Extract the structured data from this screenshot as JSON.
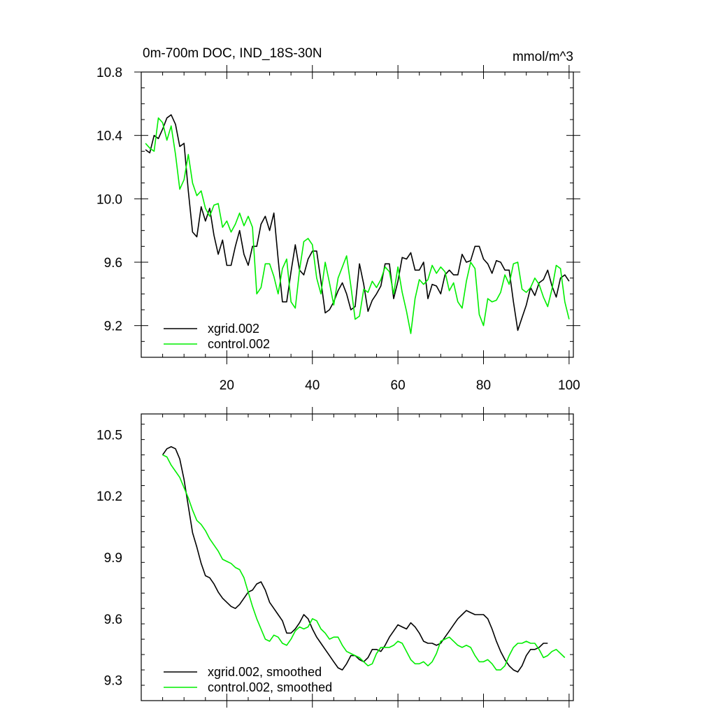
{
  "figure": {
    "title": "0m-700m DOC, IND_18S-30N",
    "units": "mmol/m^3"
  },
  "colors": {
    "series1": "#000000",
    "series2": "#00ee00",
    "axis": "#000000"
  },
  "chart_data": [
    {
      "type": "line",
      "title": "0m-700m DOC, IND_18S-30N",
      "units_label": "mmol/m^3",
      "xlabel": "",
      "ylabel": "",
      "xlim": [
        0,
        101
      ],
      "ylim": [
        9.0,
        10.8
      ],
      "xticks": [
        20,
        40,
        60,
        80,
        100
      ],
      "xtick_labels": [
        "20",
        "40",
        "60",
        "80",
        "100"
      ],
      "yticks": [
        9.2,
        9.6,
        10.0,
        10.4,
        10.8
      ],
      "ytick_labels": [
        "9.2",
        "9.6",
        "10.0",
        "10.4",
        "10.8"
      ],
      "legend_position": "bottom-left",
      "x_start": 1,
      "x_step": 1,
      "series": [
        {
          "name": "xgrid.002",
          "color": "#000000",
          "values": [
            10.31,
            10.29,
            10.4,
            10.38,
            10.44,
            10.51,
            10.53,
            10.47,
            10.33,
            10.35,
            10.05,
            9.79,
            9.76,
            9.95,
            9.86,
            9.94,
            9.77,
            9.65,
            9.74,
            9.58,
            9.58,
            9.7,
            9.8,
            9.65,
            9.58,
            9.7,
            9.7,
            9.84,
            9.89,
            9.8,
            9.91,
            9.62,
            9.35,
            9.35,
            9.54,
            9.71,
            9.55,
            9.52,
            9.62,
            9.67,
            9.67,
            9.48,
            9.28,
            9.3,
            9.35,
            9.42,
            9.47,
            9.4,
            9.3,
            9.32,
            9.59,
            9.46,
            9.29,
            9.36,
            9.4,
            9.45,
            9.59,
            9.59,
            9.37,
            9.48,
            9.63,
            9.62,
            9.66,
            9.55,
            9.55,
            9.6,
            9.37,
            9.46,
            9.45,
            9.4,
            9.52,
            9.55,
            9.52,
            9.52,
            9.65,
            9.6,
            9.61,
            9.7,
            9.7,
            9.62,
            9.59,
            9.53,
            9.61,
            9.6,
            9.55,
            9.55,
            9.35,
            9.17,
            9.25,
            9.33,
            9.44,
            9.39,
            9.47,
            9.49,
            9.55,
            9.45,
            9.38,
            9.5,
            9.52,
            9.48
          ]
        },
        {
          "name": "control.002",
          "color": "#00ee00",
          "values": [
            10.35,
            10.32,
            10.3,
            10.51,
            10.48,
            10.37,
            10.46,
            10.28,
            10.06,
            10.12,
            10.28,
            10.1,
            10.02,
            10.05,
            9.94,
            9.89,
            9.96,
            9.97,
            9.82,
            9.86,
            9.79,
            9.84,
            9.91,
            9.83,
            9.89,
            9.82,
            9.4,
            9.44,
            9.59,
            9.59,
            9.51,
            9.4,
            9.56,
            9.62,
            9.35,
            9.31,
            9.55,
            9.73,
            9.75,
            9.71,
            9.5,
            9.4,
            9.6,
            9.47,
            9.33,
            9.5,
            9.57,
            9.64,
            9.45,
            9.24,
            9.26,
            9.43,
            9.41,
            9.48,
            9.44,
            9.49,
            9.57,
            9.54,
            9.4,
            9.57,
            9.41,
            9.29,
            9.15,
            9.37,
            9.49,
            9.46,
            9.49,
            9.58,
            9.53,
            9.57,
            9.54,
            9.42,
            9.47,
            9.35,
            9.31,
            9.48,
            9.6,
            9.56,
            9.27,
            9.2,
            9.37,
            9.35,
            9.36,
            9.41,
            9.52,
            9.46,
            9.59,
            9.6,
            9.43,
            9.41,
            9.44,
            9.5,
            9.46,
            9.38,
            9.32,
            9.43,
            9.58,
            9.56,
            9.35,
            9.24
          ]
        }
      ]
    },
    {
      "type": "line",
      "title": "",
      "xlabel": "",
      "ylabel": "",
      "xlim": [
        0,
        101
      ],
      "ylim": [
        9.2,
        10.6
      ],
      "xticks": [
        20,
        40,
        60,
        80,
        100
      ],
      "xtick_labels": [],
      "yticks": [
        9.3,
        9.6,
        9.9,
        10.2,
        10.5
      ],
      "ytick_labels": [
        "9.3",
        "9.6",
        "9.9",
        "10.2",
        "10.5"
      ],
      "legend_position": "bottom-left",
      "x_start": 5,
      "x_step": 1,
      "series": [
        {
          "name": "xgrid.002, smoothed",
          "color": "#000000",
          "values": [
            10.4,
            10.43,
            10.44,
            10.43,
            10.38,
            10.28,
            10.15,
            10.02,
            9.95,
            9.87,
            9.81,
            9.8,
            9.77,
            9.73,
            9.7,
            9.68,
            9.66,
            9.65,
            9.67,
            9.7,
            9.73,
            9.74,
            9.77,
            9.78,
            9.74,
            9.68,
            9.65,
            9.62,
            9.59,
            9.53,
            9.53,
            9.55,
            9.58,
            9.62,
            9.6,
            9.55,
            9.51,
            9.48,
            9.45,
            9.42,
            9.39,
            9.36,
            9.35,
            9.38,
            9.42,
            9.42,
            9.4,
            9.39,
            9.41,
            9.45,
            9.45,
            9.44,
            9.47,
            9.51,
            9.54,
            9.57,
            9.56,
            9.55,
            9.58,
            9.56,
            9.53,
            9.49,
            9.48,
            9.48,
            9.47,
            9.48,
            9.51,
            9.54,
            9.57,
            9.6,
            9.62,
            9.64,
            9.63,
            9.62,
            9.62,
            9.62,
            9.6,
            9.55,
            9.49,
            9.44,
            9.4,
            9.37,
            9.35,
            9.34,
            9.37,
            9.42,
            9.45,
            9.45,
            9.46,
            9.48,
            9.48
          ]
        },
        {
          "name": "control.002, smoothed",
          "color": "#00ee00",
          "values": [
            10.4,
            10.39,
            10.35,
            10.32,
            10.29,
            10.24,
            10.19,
            10.13,
            10.08,
            10.06,
            10.03,
            9.99,
            9.96,
            9.93,
            9.89,
            9.88,
            9.87,
            9.85,
            9.84,
            9.8,
            9.73,
            9.66,
            9.6,
            9.55,
            9.5,
            9.49,
            9.52,
            9.51,
            9.48,
            9.47,
            9.5,
            9.54,
            9.56,
            9.55,
            9.56,
            9.6,
            9.59,
            9.55,
            9.53,
            9.5,
            9.51,
            9.51,
            9.47,
            9.44,
            9.43,
            9.42,
            9.41,
            9.39,
            9.37,
            9.38,
            9.43,
            9.46,
            9.46,
            9.46,
            9.47,
            9.49,
            9.48,
            9.44,
            9.4,
            9.38,
            9.38,
            9.39,
            9.37,
            9.39,
            9.43,
            9.49,
            9.5,
            9.51,
            9.49,
            9.47,
            9.46,
            9.47,
            9.46,
            9.42,
            9.39,
            9.39,
            9.4,
            9.38,
            9.35,
            9.35,
            9.37,
            9.42,
            9.46,
            9.48,
            9.48,
            9.49,
            9.48,
            9.48,
            9.45,
            9.41,
            9.42,
            9.44,
            9.45,
            9.43,
            9.41
          ]
        }
      ]
    }
  ]
}
